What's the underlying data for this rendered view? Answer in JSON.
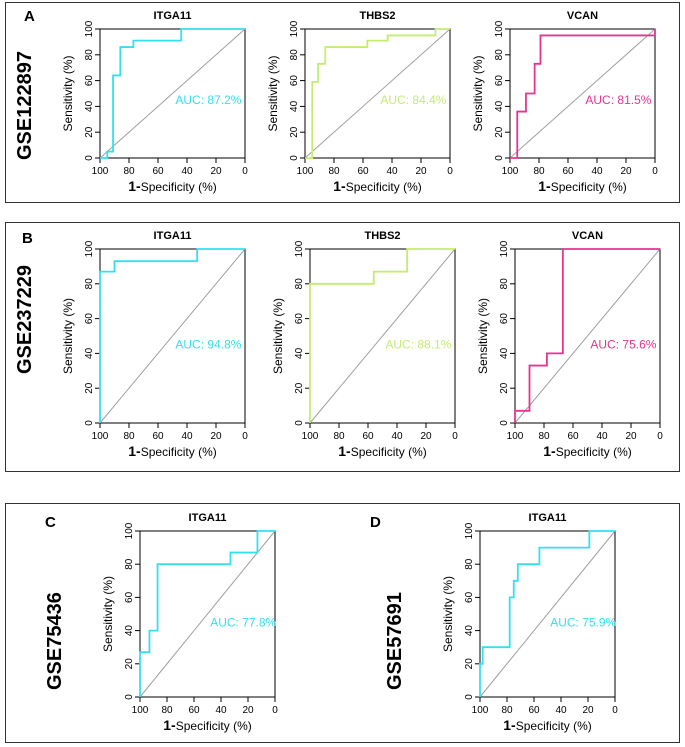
{
  "panels": [
    {
      "letter": "A",
      "dataset": "GSE122897"
    },
    {
      "letter": "B",
      "dataset": "GSE237229"
    },
    {
      "letter": "C",
      "dataset": "GSE75436"
    },
    {
      "letter": "D",
      "dataset": "GSE57691"
    }
  ],
  "colors": {
    "ITGA11": "#33e0f0",
    "THBS2": "#c5ec72",
    "VCAN": "#e6358f",
    "diagonal": "#a0a0a0"
  },
  "chart_data": [
    {
      "type": "line",
      "panel": "A",
      "dataset": "GSE122897",
      "title": "ITGA11",
      "xlabel_prefix": "1-",
      "xlabel": "Specificity (%)",
      "ylabel": "Sensitivity (%)",
      "xlim": [
        100,
        0
      ],
      "ylim": [
        0,
        100
      ],
      "xticks": [
        100,
        80,
        60,
        40,
        20,
        0
      ],
      "yticks": [
        0,
        20,
        40,
        60,
        80,
        100
      ],
      "auc_label": "AUC: 87.2%",
      "color": "#33e0f0",
      "specificity": [
        100,
        95,
        95,
        91,
        91,
        86,
        86,
        77,
        77,
        44,
        44,
        0
      ],
      "sensitivity": [
        0,
        0,
        5,
        5,
        64,
        64,
        86,
        86,
        91,
        91,
        100,
        100
      ]
    },
    {
      "type": "line",
      "panel": "A",
      "dataset": "GSE122897",
      "title": "THBS2",
      "xlabel_prefix": "1-",
      "xlabel": "Specificity (%)",
      "ylabel": "Sensitivity (%)",
      "xlim": [
        100,
        0
      ],
      "ylim": [
        0,
        100
      ],
      "xticks": [
        100,
        80,
        60,
        40,
        20,
        0
      ],
      "yticks": [
        0,
        20,
        40,
        60,
        80,
        100
      ],
      "auc_label": "AUC: 84.4%",
      "color": "#c5ec72",
      "specificity": [
        100,
        95,
        95,
        91,
        91,
        86,
        86,
        57,
        57,
        43,
        43,
        10,
        10,
        0
      ],
      "sensitivity": [
        0,
        0,
        59,
        59,
        73,
        73,
        86,
        86,
        91,
        91,
        95,
        95,
        100,
        100
      ]
    },
    {
      "type": "line",
      "panel": "A",
      "dataset": "GSE122897",
      "title": "VCAN",
      "xlabel_prefix": "1-",
      "xlabel": "Specificity (%)",
      "ylabel": "Sensitivity (%)",
      "xlim": [
        100,
        0
      ],
      "ylim": [
        0,
        100
      ],
      "xticks": [
        100,
        80,
        60,
        40,
        20,
        0
      ],
      "yticks": [
        0,
        20,
        40,
        60,
        80,
        100
      ],
      "auc_label": "AUC: 81.5%",
      "color": "#e6358f",
      "specificity": [
        100,
        95,
        95,
        89,
        89,
        83,
        83,
        79,
        79,
        74,
        74,
        0,
        0
      ],
      "sensitivity": [
        0,
        0,
        36,
        36,
        50,
        50,
        73,
        73,
        95,
        95,
        95,
        95,
        100
      ]
    },
    {
      "type": "line",
      "panel": "B",
      "dataset": "GSE237229",
      "title": "ITGA11",
      "xlabel_prefix": "1-",
      "xlabel": "Specificity (%)",
      "ylabel": "Sensitivity (%)",
      "xlim": [
        100,
        0
      ],
      "ylim": [
        0,
        100
      ],
      "xticks": [
        100,
        80,
        60,
        40,
        20,
        0
      ],
      "yticks": [
        0,
        20,
        40,
        60,
        80,
        100
      ],
      "auc_label": "AUC: 94.8%",
      "color": "#33e0f0",
      "specificity": [
        100,
        100,
        90,
        90,
        33,
        33,
        0
      ],
      "sensitivity": [
        0,
        87,
        87,
        93,
        93,
        100,
        100
      ]
    },
    {
      "type": "line",
      "panel": "B",
      "dataset": "GSE237229",
      "title": "THBS2",
      "xlabel_prefix": "1-",
      "xlabel": "Specificity (%)",
      "ylabel": "Sensitivity (%)",
      "xlim": [
        100,
        0
      ],
      "ylim": [
        0,
        100
      ],
      "xticks": [
        100,
        80,
        60,
        40,
        20,
        0
      ],
      "yticks": [
        0,
        20,
        40,
        60,
        80,
        100
      ],
      "auc_label": "AUC: 88.1%",
      "color": "#c5ec72",
      "specificity": [
        100,
        100,
        56,
        56,
        33,
        33,
        0
      ],
      "sensitivity": [
        0,
        80,
        80,
        87,
        87,
        100,
        100
      ]
    },
    {
      "type": "line",
      "panel": "B",
      "dataset": "GSE237229",
      "title": "VCAN",
      "xlabel_prefix": "1-",
      "xlabel": "Specificity (%)",
      "ylabel": "Sensitivity (%)",
      "xlim": [
        100,
        0
      ],
      "ylim": [
        0,
        100
      ],
      "xticks": [
        100,
        80,
        60,
        40,
        20,
        0
      ],
      "yticks": [
        0,
        20,
        40,
        60,
        80,
        100
      ],
      "auc_label": "AUC: 75.6%",
      "color": "#e6358f",
      "specificity": [
        100,
        100,
        90,
        90,
        78,
        78,
        67,
        67,
        0
      ],
      "sensitivity": [
        0,
        7,
        7,
        33,
        33,
        40,
        40,
        100,
        100
      ]
    },
    {
      "type": "line",
      "panel": "C",
      "dataset": "GSE75436",
      "title": "ITGA11",
      "xlabel_prefix": "1-",
      "xlabel": "Specificity (%)",
      "ylabel": "Sensitivity (%)",
      "xlim": [
        100,
        0
      ],
      "ylim": [
        0,
        100
      ],
      "xticks": [
        100,
        80,
        60,
        40,
        20,
        0
      ],
      "yticks": [
        0,
        20,
        40,
        60,
        80,
        100
      ],
      "auc_label": "AUC: 77.8%",
      "color": "#33e0f0",
      "specificity": [
        100,
        100,
        93,
        93,
        87,
        87,
        33,
        33,
        13,
        13,
        0
      ],
      "sensitivity": [
        0,
        27,
        27,
        40,
        40,
        80,
        80,
        87,
        87,
        100,
        100
      ]
    },
    {
      "type": "line",
      "panel": "D",
      "dataset": "GSE57691",
      "title": "ITGA11",
      "xlabel_prefix": "1-",
      "xlabel": "Specificity (%)",
      "ylabel": "Sensitivity (%)",
      "xlim": [
        100,
        0
      ],
      "ylim": [
        0,
        100
      ],
      "xticks": [
        100,
        80,
        60,
        40,
        20,
        0
      ],
      "yticks": [
        0,
        20,
        40,
        60,
        80,
        100
      ],
      "auc_label": "AUC: 75.9%",
      "color": "#33e0f0",
      "specificity": [
        100,
        100,
        98,
        98,
        78,
        78,
        75,
        75,
        72,
        72,
        56,
        56,
        19,
        19,
        0
      ],
      "sensitivity": [
        0,
        20,
        20,
        30,
        30,
        60,
        60,
        70,
        70,
        80,
        80,
        90,
        90,
        100,
        100
      ]
    }
  ]
}
